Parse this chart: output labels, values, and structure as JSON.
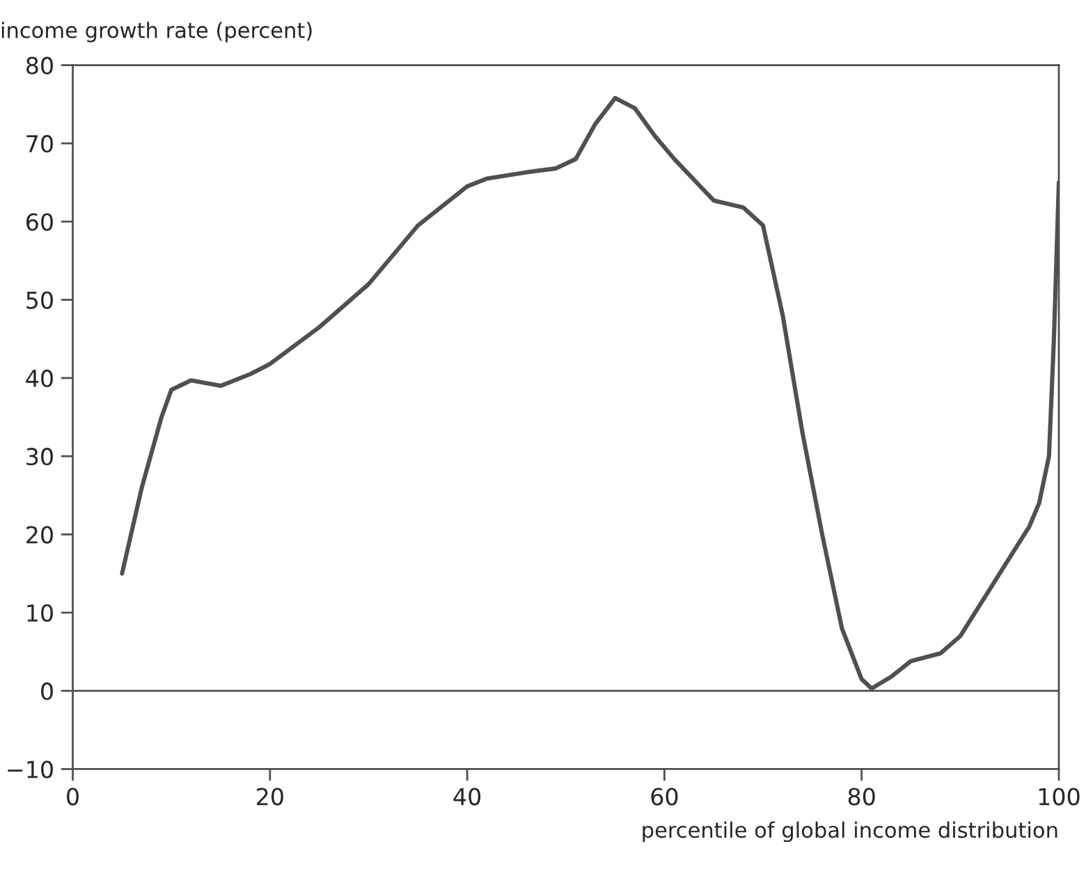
{
  "chart_data": {
    "type": "line",
    "ylabel": "income growth rate (percent)",
    "xlabel": "percentile of global income distribution",
    "x": [
      5,
      7,
      9,
      10,
      12,
      15,
      18,
      20,
      25,
      30,
      35,
      40,
      42,
      46,
      49,
      51,
      53,
      55,
      57,
      59,
      61,
      65,
      68,
      70,
      72,
      74,
      76,
      78,
      80,
      81,
      83,
      85,
      88,
      90,
      93,
      95,
      97,
      98,
      99,
      99.5,
      100
    ],
    "series": [
      {
        "color": "#505050",
        "values": [
          15,
          26,
          35,
          38.5,
          39.7,
          39,
          40.5,
          41.8,
          46.5,
          52,
          59.5,
          64.5,
          65.5,
          66.3,
          66.8,
          68,
          72.5,
          75.8,
          74.5,
          71,
          68,
          62.7,
          61.8,
          59.5,
          48,
          33,
          20,
          8,
          1.5,
          0.3,
          1.8,
          3.8,
          4.8,
          7,
          13,
          17,
          21,
          24,
          30,
          45,
          65
        ]
      }
    ],
    "xlim": [
      0,
      100
    ],
    "xticks": [
      0,
      20,
      40,
      60,
      80,
      100
    ],
    "ylim": [
      -10,
      80
    ],
    "yticks": [
      {
        "value": -10,
        "label": "−10"
      },
      0,
      10,
      20,
      30,
      40,
      50,
      60,
      70,
      80
    ],
    "ref_lines": [
      {
        "axis": "y",
        "value": 0,
        "color": "#505050"
      }
    ],
    "grid": false,
    "legend": false,
    "marker": "none",
    "line_style": "solid"
  }
}
